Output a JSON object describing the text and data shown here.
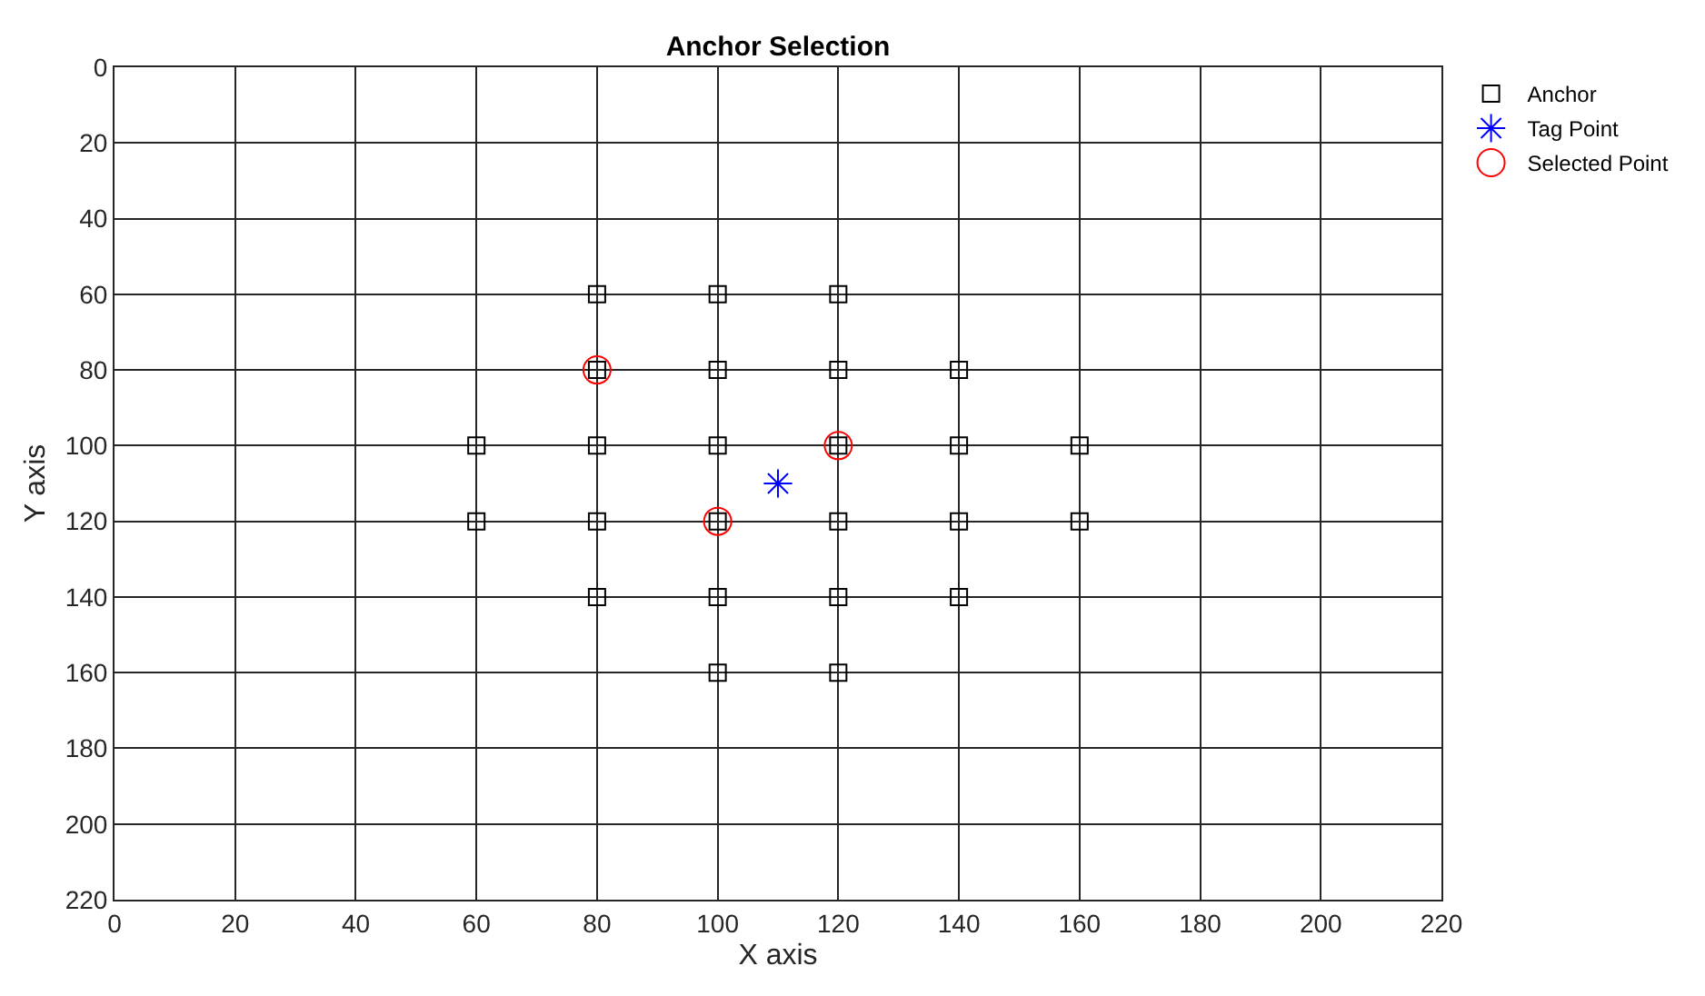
{
  "chart_data": {
    "type": "scatter",
    "title": "Anchor Selection",
    "xlabel": "X axis",
    "ylabel": "Y axis",
    "xlim": [
      0,
      220
    ],
    "xticks": [
      0,
      20,
      40,
      60,
      80,
      100,
      120,
      140,
      160,
      180,
      200,
      220
    ],
    "ylim": [
      220,
      0
    ],
    "yticks": [
      0,
      20,
      40,
      60,
      80,
      100,
      120,
      140,
      160,
      180,
      200,
      220
    ],
    "grid": true,
    "legend": "top right",
    "series": [
      {
        "name": "Anchor",
        "color": "#000000",
        "marker": "square",
        "x": [
          80,
          100,
          120,
          80,
          100,
          120,
          140,
          60,
          80,
          100,
          120,
          140,
          160,
          60,
          80,
          100,
          120,
          140,
          160,
          80,
          100,
          120,
          140,
          100,
          120
        ],
        "values": [
          60,
          60,
          60,
          80,
          80,
          80,
          80,
          100,
          100,
          100,
          100,
          100,
          100,
          120,
          120,
          120,
          120,
          120,
          120,
          140,
          140,
          140,
          140,
          160,
          160
        ]
      },
      {
        "name": "Tag Point",
        "color": "#0000ff",
        "marker": "cross",
        "x": [
          110
        ],
        "values": [
          110
        ]
      },
      {
        "name": "Selected Point",
        "color": "#ff0000",
        "marker": "circle",
        "x": [
          80,
          120,
          100
        ],
        "values": [
          80,
          100,
          120
        ]
      }
    ]
  }
}
